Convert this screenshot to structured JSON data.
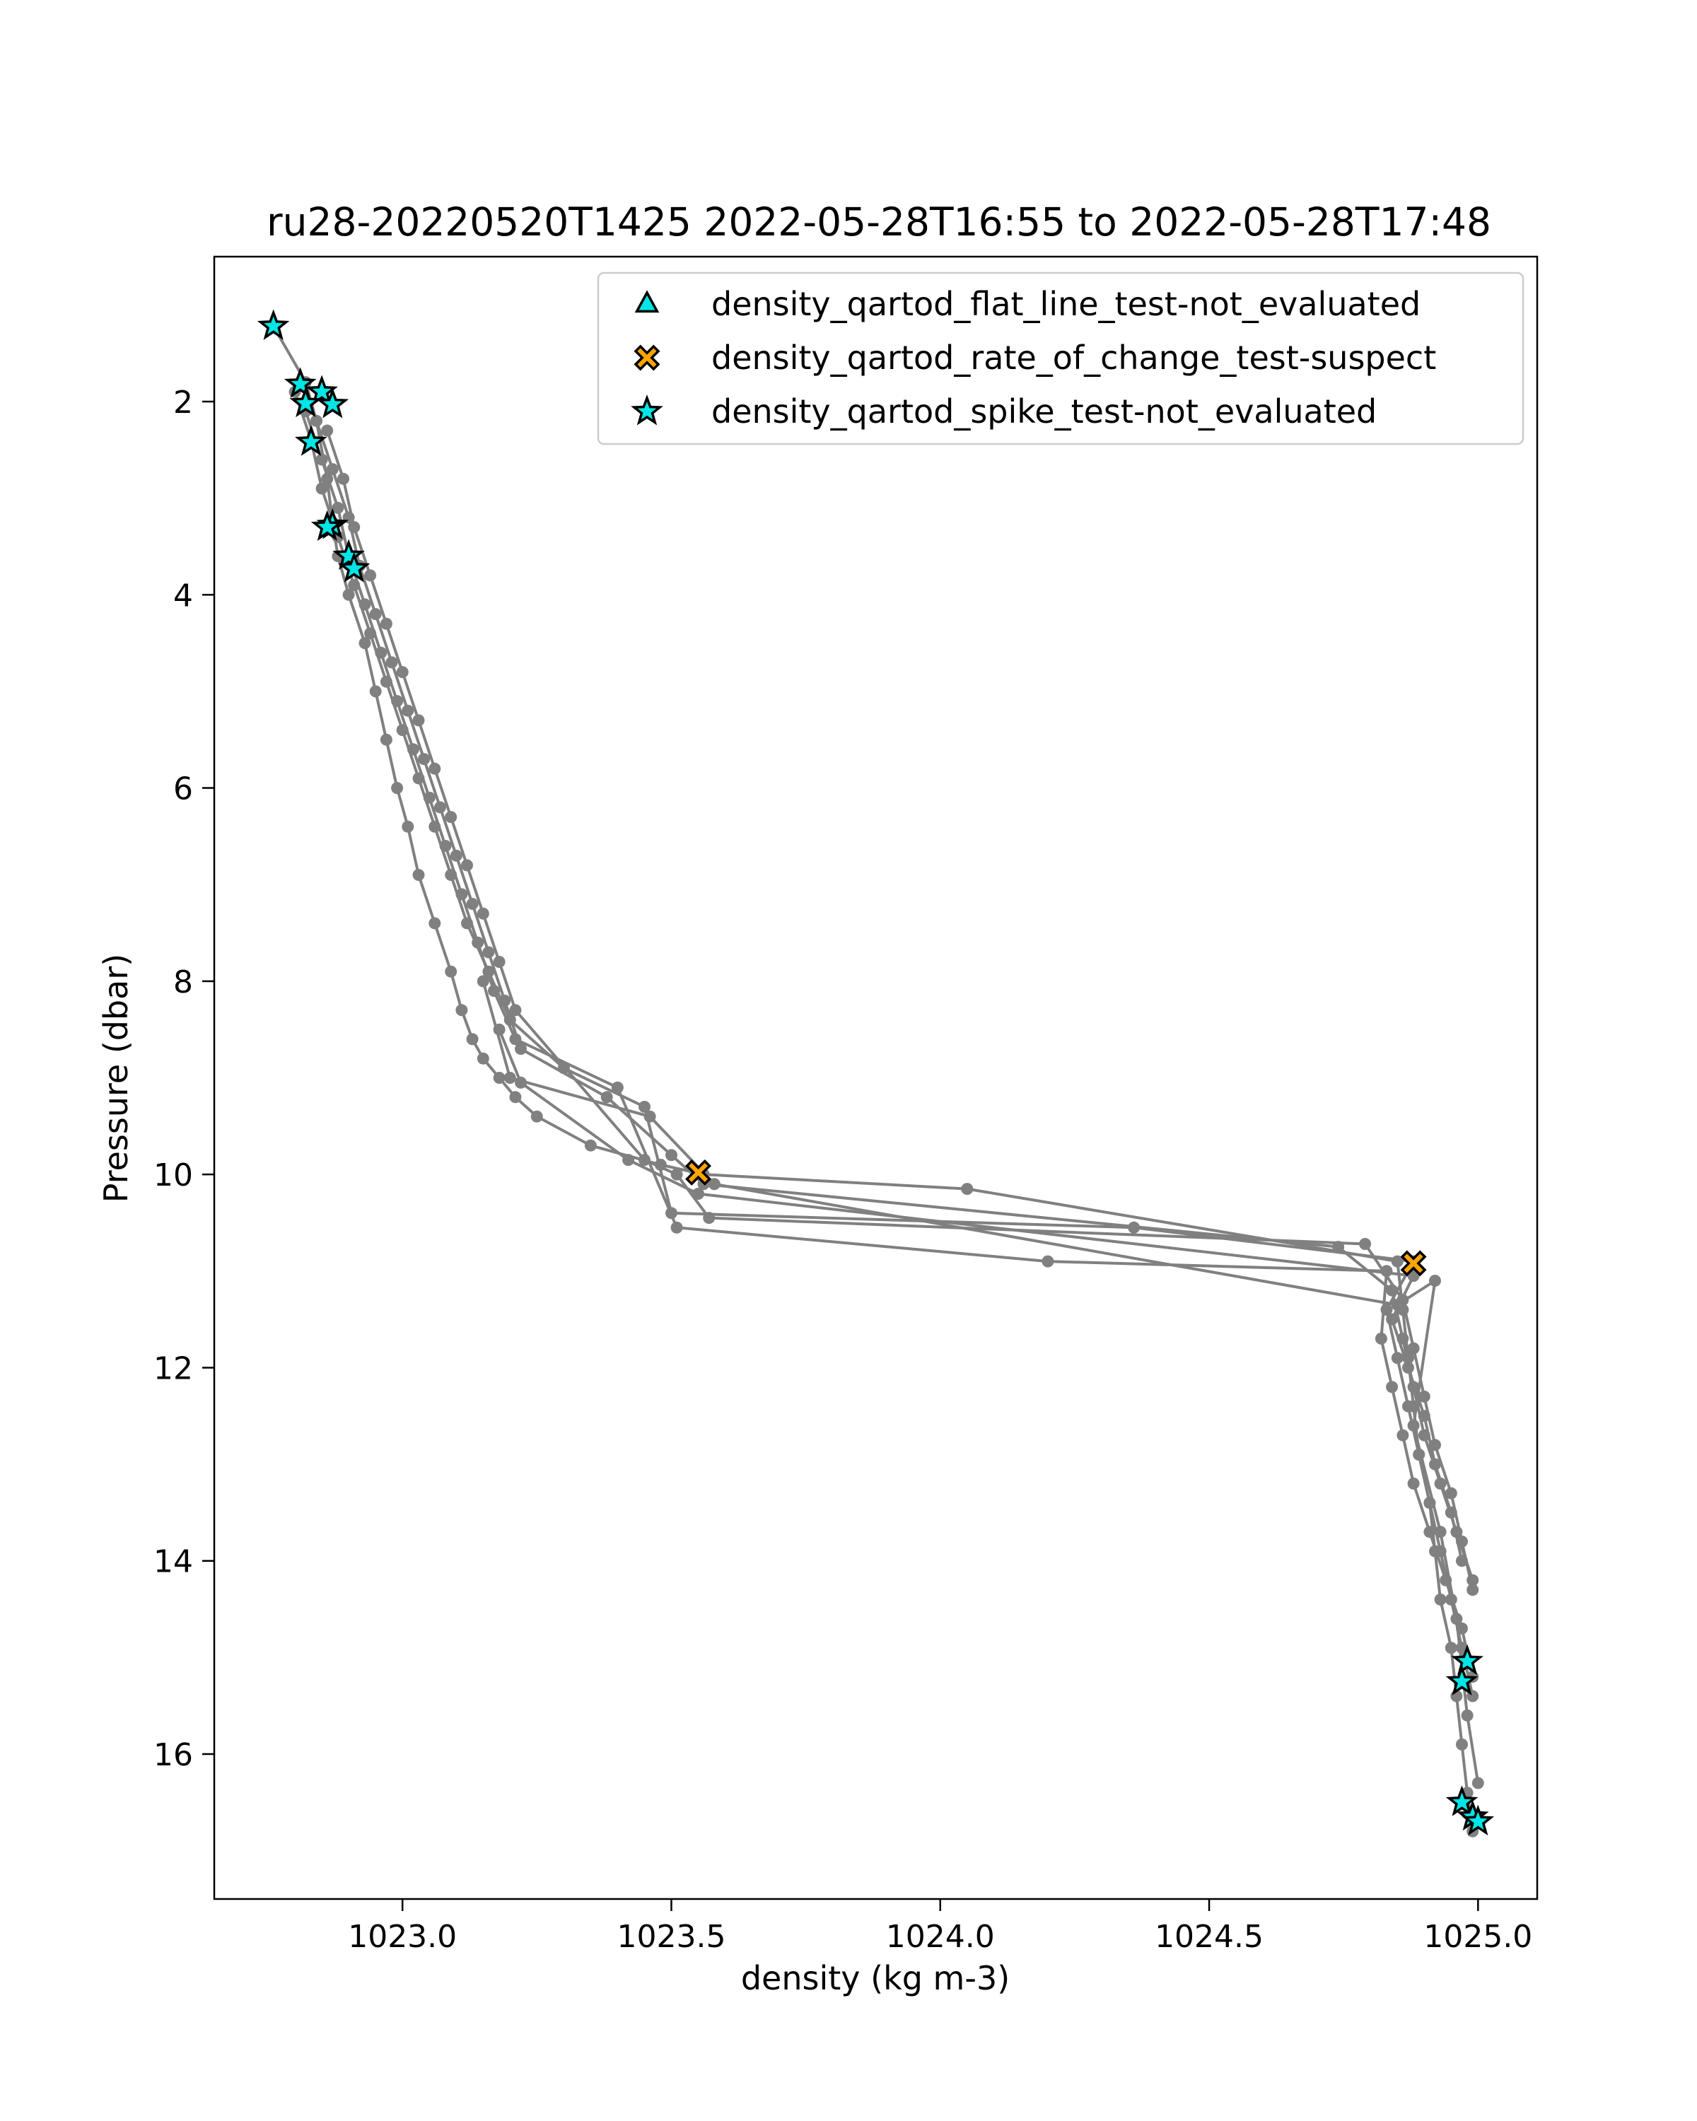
{
  "chart_data": {
    "type": "scatter",
    "title": "ru28-20220520T1425 2022-05-28T16:55 to 2022-05-28T17:48",
    "xlabel": "density (kg m-3)",
    "ylabel": "Pressure (dbar)",
    "xlim": [
      1022.65,
      1025.11
    ],
    "ylim": [
      17.5,
      0.5
    ],
    "y_inverted": true,
    "grid": false,
    "legend_position": "top-right",
    "x_ticks": [
      "1023.0",
      "1023.5",
      "1024.0",
      "1024.5",
      "1025.0"
    ],
    "y_ticks": [
      "2",
      "4",
      "6",
      "8",
      "10",
      "12",
      "14",
      "16"
    ],
    "profile_color": "#808080",
    "profiles": [
      {
        "x": [
          1022.76,
          1022.82,
          1022.84,
          1022.86,
          1022.87,
          1022.88,
          1022.9,
          1022.93,
          1022.95,
          1022.97,
          1022.99,
          1023.01,
          1023.03,
          1023.06,
          1023.09,
          1023.11,
          1023.13,
          1023.15,
          1023.18,
          1023.21,
          1023.25,
          1023.35,
          1023.48,
          1023.56,
          1024.05,
          1024.85,
          1024.86,
          1024.87,
          1024.88,
          1024.89,
          1024.91,
          1024.92,
          1024.93,
          1024.95,
          1024.96,
          1024.97,
          1024.98,
          1024.99
        ],
        "y": [
          1.22,
          1.8,
          2.2,
          2.8,
          3.25,
          3.6,
          4.0,
          4.5,
          5.0,
          5.5,
          6.0,
          6.4,
          6.9,
          7.4,
          7.9,
          8.3,
          8.6,
          8.8,
          9.0,
          9.2,
          9.4,
          9.7,
          9.9,
          10.0,
          10.15,
          10.9,
          11.4,
          11.9,
          12.4,
          12.9,
          13.4,
          13.9,
          14.4,
          14.9,
          15.4,
          15.9,
          16.4,
          16.8
        ]
      },
      {
        "x": [
          1022.8,
          1022.83,
          1022.85,
          1022.88,
          1022.91,
          1022.94,
          1022.97,
          1023.0,
          1023.03,
          1023.06,
          1023.09,
          1023.12,
          1023.16,
          1023.2,
          1023.3,
          1023.45,
          1023.5,
          1024.36,
          1024.88,
          1024.83,
          1024.85,
          1024.87,
          1024.89,
          1024.91,
          1024.93,
          1024.95,
          1024.97,
          1024.99
        ],
        "y": [
          1.9,
          2.4,
          2.9,
          3.4,
          3.9,
          4.4,
          4.9,
          5.4,
          5.9,
          6.4,
          6.9,
          7.4,
          7.9,
          8.4,
          8.9,
          9.3,
          10.4,
          10.55,
          10.9,
          11.4,
          11.9,
          12.4,
          12.9,
          13.4,
          13.9,
          14.4,
          14.9,
          15.4
        ]
      },
      {
        "x": [
          1022.82,
          1022.85,
          1022.88,
          1022.9,
          1022.93,
          1022.96,
          1022.99,
          1023.02,
          1023.05,
          1023.08,
          1023.11,
          1023.14,
          1023.17,
          1023.21,
          1023.4,
          1023.51,
          1024.2,
          1024.83,
          1024.82,
          1024.84,
          1024.86,
          1024.88,
          1024.91,
          1024.94,
          1024.97,
          1024.99
        ],
        "y": [
          2.1,
          2.6,
          3.1,
          3.6,
          4.1,
          4.6,
          5.1,
          5.6,
          6.1,
          6.6,
          7.1,
          7.6,
          8.1,
          8.6,
          9.1,
          10.55,
          10.9,
          11.0,
          11.7,
          12.2,
          12.7,
          13.2,
          13.7,
          14.2,
          14.7,
          15.2
        ]
      },
      {
        "x": [
          1022.84,
          1022.87,
          1022.9,
          1022.92,
          1022.95,
          1022.98,
          1023.01,
          1023.04,
          1023.07,
          1023.1,
          1023.13,
          1023.16,
          1023.19,
          1023.22,
          1023.38,
          1023.5,
          1023.56,
          1024.74,
          1024.84,
          1024.86,
          1024.88,
          1024.9,
          1024.93,
          1024.96,
          1024.99
        ],
        "y": [
          2.2,
          2.7,
          3.2,
          3.7,
          4.2,
          4.7,
          5.2,
          5.7,
          6.2,
          6.7,
          7.2,
          7.7,
          8.2,
          8.7,
          9.2,
          9.8,
          10.1,
          10.75,
          11.2,
          11.7,
          12.2,
          12.7,
          13.2,
          13.7,
          14.2
        ]
      },
      {
        "x": [
          1022.86,
          1022.89,
          1022.91,
          1022.94,
          1022.97,
          1023.0,
          1023.03,
          1023.06,
          1023.09,
          1023.12,
          1023.15,
          1023.18,
          1023.21,
          1023.45,
          1023.51,
          1023.57,
          1024.79,
          1024.86,
          1024.88,
          1024.9,
          1024.92,
          1024.95,
          1024.97,
          1024.99
        ],
        "y": [
          2.3,
          2.8,
          3.3,
          3.8,
          4.3,
          4.8,
          5.3,
          5.8,
          6.3,
          6.8,
          7.3,
          7.8,
          8.3,
          9.85,
          10.0,
          10.45,
          10.72,
          11.3,
          11.8,
          12.3,
          12.8,
          13.3,
          13.8,
          14.3
        ]
      },
      {
        "x": [
          1023.18,
          1023.22,
          1023.42,
          1023.55,
          1024.88,
          1024.84,
          1024.87,
          1024.9,
          1024.92,
          1024.95,
          1024.97
        ],
        "y": [
          8.5,
          9.05,
          9.85,
          10.2,
          11.05,
          11.5,
          12.0,
          12.5,
          13.0,
          13.5,
          14.0
        ]
      },
      {
        "x": [
          1023.15,
          1023.2,
          1023.46,
          1023.58,
          1024.85,
          1024.92,
          1024.88,
          1024.93,
          1024.96,
          1024.98,
          1025.0
        ],
        "y": [
          8.0,
          9.0,
          9.4,
          10.1,
          11.35,
          11.1,
          12.6,
          13.7,
          14.6,
          15.6,
          16.3
        ]
      }
    ],
    "series": [
      {
        "name": "density_qartod_flat_line_test-not_evaluated",
        "marker": "triangle",
        "color": "#00e5e5",
        "x": [],
        "y": []
      },
      {
        "name": "density_qartod_rate_of_change_test-suspect",
        "marker": "x",
        "color": "#ffa500",
        "x": [
          1023.55,
          1024.88
        ],
        "y": [
          9.98,
          10.92
        ]
      },
      {
        "name": "density_qartod_spike_test-not_evaluated",
        "marker": "star",
        "color": "#00e5e5",
        "x": [
          1022.76,
          1022.81,
          1022.85,
          1022.82,
          1022.87,
          1022.83,
          1022.87,
          1022.86,
          1022.9,
          1022.91,
          1024.98,
          1024.97,
          1024.97,
          1024.99,
          1025.0
        ],
        "y": [
          1.22,
          1.82,
          1.9,
          2.02,
          2.03,
          2.42,
          3.28,
          3.3,
          3.6,
          3.73,
          15.04,
          15.25,
          16.5,
          16.65,
          16.7
        ]
      }
    ]
  }
}
